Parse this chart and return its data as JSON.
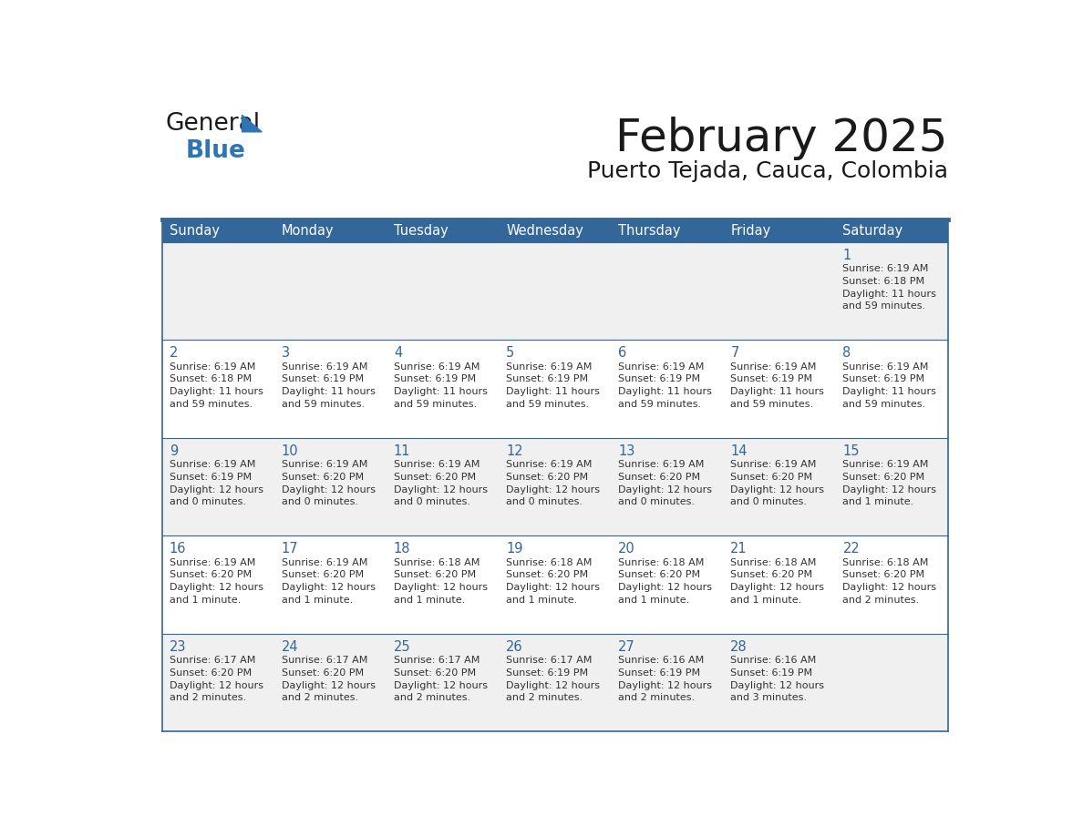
{
  "title": "February 2025",
  "subtitle": "Puerto Tejada, Cauca, Colombia",
  "header_bg": "#336699",
  "header_text": "#ffffff",
  "row_bg_odd": "#f0f0f0",
  "row_bg_even": "#ffffff",
  "border_color": "#336699",
  "cell_border_color": "#336699",
  "day_num_color": "#336699",
  "text_color": "#333333",
  "day_headers": [
    "Sunday",
    "Monday",
    "Tuesday",
    "Wednesday",
    "Thursday",
    "Friday",
    "Saturday"
  ],
  "calendar": [
    [
      "",
      "",
      "",
      "",
      "",
      "",
      "1\nSunrise: 6:19 AM\nSunset: 6:18 PM\nDaylight: 11 hours\nand 59 minutes."
    ],
    [
      "2\nSunrise: 6:19 AM\nSunset: 6:18 PM\nDaylight: 11 hours\nand 59 minutes.",
      "3\nSunrise: 6:19 AM\nSunset: 6:19 PM\nDaylight: 11 hours\nand 59 minutes.",
      "4\nSunrise: 6:19 AM\nSunset: 6:19 PM\nDaylight: 11 hours\nand 59 minutes.",
      "5\nSunrise: 6:19 AM\nSunset: 6:19 PM\nDaylight: 11 hours\nand 59 minutes.",
      "6\nSunrise: 6:19 AM\nSunset: 6:19 PM\nDaylight: 11 hours\nand 59 minutes.",
      "7\nSunrise: 6:19 AM\nSunset: 6:19 PM\nDaylight: 11 hours\nand 59 minutes.",
      "8\nSunrise: 6:19 AM\nSunset: 6:19 PM\nDaylight: 11 hours\nand 59 minutes."
    ],
    [
      "9\nSunrise: 6:19 AM\nSunset: 6:19 PM\nDaylight: 12 hours\nand 0 minutes.",
      "10\nSunrise: 6:19 AM\nSunset: 6:20 PM\nDaylight: 12 hours\nand 0 minutes.",
      "11\nSunrise: 6:19 AM\nSunset: 6:20 PM\nDaylight: 12 hours\nand 0 minutes.",
      "12\nSunrise: 6:19 AM\nSunset: 6:20 PM\nDaylight: 12 hours\nand 0 minutes.",
      "13\nSunrise: 6:19 AM\nSunset: 6:20 PM\nDaylight: 12 hours\nand 0 minutes.",
      "14\nSunrise: 6:19 AM\nSunset: 6:20 PM\nDaylight: 12 hours\nand 0 minutes.",
      "15\nSunrise: 6:19 AM\nSunset: 6:20 PM\nDaylight: 12 hours\nand 1 minute."
    ],
    [
      "16\nSunrise: 6:19 AM\nSunset: 6:20 PM\nDaylight: 12 hours\nand 1 minute.",
      "17\nSunrise: 6:19 AM\nSunset: 6:20 PM\nDaylight: 12 hours\nand 1 minute.",
      "18\nSunrise: 6:18 AM\nSunset: 6:20 PM\nDaylight: 12 hours\nand 1 minute.",
      "19\nSunrise: 6:18 AM\nSunset: 6:20 PM\nDaylight: 12 hours\nand 1 minute.",
      "20\nSunrise: 6:18 AM\nSunset: 6:20 PM\nDaylight: 12 hours\nand 1 minute.",
      "21\nSunrise: 6:18 AM\nSunset: 6:20 PM\nDaylight: 12 hours\nand 1 minute.",
      "22\nSunrise: 6:18 AM\nSunset: 6:20 PM\nDaylight: 12 hours\nand 2 minutes."
    ],
    [
      "23\nSunrise: 6:17 AM\nSunset: 6:20 PM\nDaylight: 12 hours\nand 2 minutes.",
      "24\nSunrise: 6:17 AM\nSunset: 6:20 PM\nDaylight: 12 hours\nand 2 minutes.",
      "25\nSunrise: 6:17 AM\nSunset: 6:20 PM\nDaylight: 12 hours\nand 2 minutes.",
      "26\nSunrise: 6:17 AM\nSunset: 6:19 PM\nDaylight: 12 hours\nand 2 minutes.",
      "27\nSunrise: 6:16 AM\nSunset: 6:19 PM\nDaylight: 12 hours\nand 2 minutes.",
      "28\nSunrise: 6:16 AM\nSunset: 6:19 PM\nDaylight: 12 hours\nand 3 minutes.",
      ""
    ]
  ],
  "logo_general_color": "#1a1a1a",
  "logo_blue_color": "#2e75b6",
  "logo_triangle_color": "#2e75b6"
}
